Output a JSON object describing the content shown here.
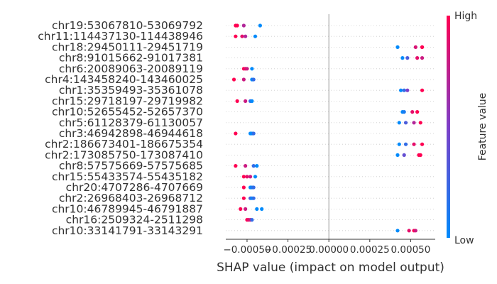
{
  "chart_data": {
    "type": "scatter",
    "subtype": "shap-beeswarm-summary",
    "xlabel": "SHAP value (impact on model output)",
    "xlim": [
      -0.00063,
      0.00065
    ],
    "x_ticks": [
      -0.0005,
      -0.00025,
      0.0,
      0.00025,
      0.0005
    ],
    "x_tick_labels": [
      "−0.00050",
      "−0.00025",
      "0.00000",
      "0.00025",
      "0.00050"
    ],
    "grid": false,
    "zero_line": true,
    "colorbar": {
      "label": "Feature value",
      "high_label": "High",
      "low_label": "Low",
      "colors": {
        "low": "#008afb",
        "mid": "#7d3fc8",
        "high": "#ff0052"
      }
    },
    "features": [
      {
        "name": "chr19:53067810-53069792",
        "points": [
          [
            -0.00057,
            1
          ],
          [
            -0.00056,
            1
          ],
          [
            -0.00052,
            0.7
          ],
          [
            -0.00042,
            0
          ]
        ]
      },
      {
        "name": "chr11:114437130-114438946",
        "points": [
          [
            -0.00057,
            1
          ],
          [
            -0.00053,
            0.9
          ],
          [
            -0.00051,
            0.7
          ],
          [
            -0.00045,
            0
          ]
        ]
      },
      {
        "name": "chr18:29450111-29451719",
        "points": [
          [
            0.00042,
            0
          ],
          [
            0.00053,
            0.85
          ],
          [
            0.00057,
            1
          ],
          [
            0.00057,
            1
          ]
        ]
      },
      {
        "name": "chr8:91015662-91017381",
        "points": [
          [
            0.00045,
            0
          ],
          [
            0.00048,
            0.3
          ],
          [
            0.00054,
            0.9
          ],
          [
            0.00057,
            0.8
          ]
        ]
      },
      {
        "name": "chr6:20089063-20089119",
        "points": [
          [
            -0.00052,
            1
          ],
          [
            -0.00051,
            0.9
          ],
          [
            -0.0005,
            0.8
          ],
          [
            -0.00047,
            0
          ]
        ]
      },
      {
        "name": "chr4:143458240-143460025",
        "points": [
          [
            -0.00058,
            1
          ],
          [
            -0.00052,
            0.8
          ],
          [
            -0.00047,
            0
          ],
          [
            -0.00046,
            0.2
          ]
        ]
      },
      {
        "name": "chr1:35359493-35361078",
        "points": [
          [
            0.00044,
            0
          ],
          [
            0.00046,
            0.2
          ],
          [
            0.00048,
            0.5
          ],
          [
            0.00057,
            1
          ]
        ]
      },
      {
        "name": "chr15:29718197-29719982",
        "points": [
          [
            -0.00056,
            1
          ],
          [
            -0.00051,
            0.8
          ],
          [
            -0.00048,
            0.2
          ],
          [
            -0.00047,
            0
          ]
        ]
      },
      {
        "name": "chr10:52655452-52657370",
        "points": [
          [
            0.00045,
            0
          ],
          [
            0.00046,
            0.1
          ],
          [
            0.00051,
            0.9
          ],
          [
            0.00054,
            1
          ]
        ]
      },
      {
        "name": "chr5:61128379-61130057",
        "points": [
          [
            0.00043,
            0
          ],
          [
            0.00047,
            0.3
          ],
          [
            0.00052,
            0.7
          ],
          [
            0.00056,
            1
          ]
        ]
      },
      {
        "name": "chr3:46942898-46944618",
        "points": [
          [
            -0.00057,
            1
          ],
          [
            -0.00048,
            0
          ],
          [
            -0.00047,
            0
          ],
          [
            -0.00046,
            0.2
          ]
        ]
      },
      {
        "name": "chr2:186673401-186675354",
        "points": [
          [
            0.00043,
            0
          ],
          [
            0.00047,
            0.2
          ],
          [
            0.00052,
            0.9
          ],
          [
            0.00057,
            1
          ]
        ]
      },
      {
        "name": "chr2:173085750-173087410",
        "points": [
          [
            0.00042,
            0
          ],
          [
            0.00046,
            0.4
          ],
          [
            0.00055,
            1
          ],
          [
            0.00056,
            1
          ]
        ]
      },
      {
        "name": "chr8:57575669-57575685",
        "points": [
          [
            -0.00057,
            1
          ],
          [
            -0.00051,
            0.8
          ],
          [
            -0.00046,
            0.2
          ],
          [
            -0.00044,
            0
          ]
        ]
      },
      {
        "name": "chr15:55433574-55435182",
        "points": [
          [
            -0.00052,
            1
          ],
          [
            -0.0005,
            0.9
          ],
          [
            -0.00048,
            0.8
          ],
          [
            -0.00045,
            0
          ]
        ]
      },
      {
        "name": "chr20:4707286-4707669",
        "points": [
          [
            -0.00052,
            1
          ],
          [
            -0.00048,
            0
          ],
          [
            -0.00047,
            0.1
          ],
          [
            -0.00046,
            0.2
          ]
        ]
      },
      {
        "name": "chr2:26968403-26968712",
        "points": [
          [
            -0.00052,
            1
          ],
          [
            -0.00048,
            0.3
          ],
          [
            -0.00047,
            0
          ],
          [
            -0.00046,
            0.2
          ]
        ]
      },
      {
        "name": "chr10:46789945-46791887",
        "points": [
          [
            -0.00054,
            1
          ],
          [
            -0.00051,
            0.8
          ],
          [
            -0.00044,
            0
          ],
          [
            -0.00041,
            0
          ]
        ]
      },
      {
        "name": "chr16:2509324-2511298",
        "points": [
          [
            -0.0005,
            1
          ],
          [
            -0.00049,
            0.9
          ],
          [
            -0.00048,
            0.8
          ],
          [
            -0.00047,
            0.2
          ]
        ]
      },
      {
        "name": "chr10:33141791-33143291",
        "points": [
          [
            0.00042,
            0
          ],
          [
            0.00049,
            0.9
          ],
          [
            0.00052,
            1
          ],
          [
            0.00053,
            0.8
          ]
        ]
      }
    ]
  }
}
